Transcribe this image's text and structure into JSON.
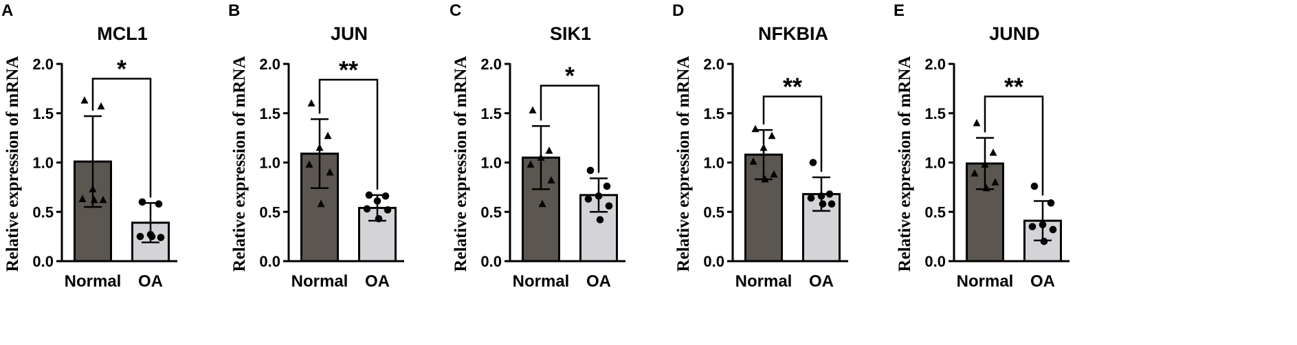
{
  "colors": {
    "normal_bar": "#5b5650",
    "oa_bar": "#d4d4d8",
    "ink": "#000000"
  },
  "chart_data": [
    {
      "panel": "A",
      "type": "bar",
      "title": "MCL1",
      "ylabel": "Relative  expression of mRNA",
      "ylim": [
        0,
        2.0
      ],
      "yticks": [
        "0.0",
        "0.5",
        "1.0",
        "1.5",
        "2.0"
      ],
      "categories": [
        "Normal",
        "OA"
      ],
      "values": [
        1.01,
        0.39
      ],
      "errors": [
        0.46,
        0.2
      ],
      "points": [
        [
          1.63,
          1.57,
          0.73,
          0.63,
          0.62,
          0.62
        ],
        [
          0.6,
          0.58,
          0.27,
          0.25,
          0.24,
          0.25
        ]
      ],
      "significance": "*",
      "bracket_y": 1.85
    },
    {
      "panel": "B",
      "type": "bar",
      "title": "JUN",
      "ylabel": "Relative  expression of mRNA",
      "ylim": [
        0,
        2.0
      ],
      "yticks": [
        "0.0",
        "0.5",
        "1.0",
        "1.5",
        "2.0"
      ],
      "categories": [
        "Normal",
        "OA"
      ],
      "values": [
        1.09,
        0.54
      ],
      "errors": [
        0.35,
        0.13
      ],
      "points": [
        [
          1.6,
          1.27,
          1.15,
          0.98,
          0.9,
          0.58
        ],
        [
          0.67,
          0.66,
          0.61,
          0.53,
          0.52,
          0.43
        ]
      ],
      "significance": "**",
      "bracket_y": 1.84
    },
    {
      "panel": "C",
      "type": "bar",
      "title": "SIK1",
      "ylabel": "Relative  expression of mRNA",
      "ylim": [
        0,
        2.0
      ],
      "yticks": [
        "0.0",
        "0.5",
        "1.0",
        "1.5",
        "2.0"
      ],
      "categories": [
        "Normal",
        "OA"
      ],
      "values": [
        1.05,
        0.67
      ],
      "errors": [
        0.32,
        0.17
      ],
      "points": [
        [
          1.53,
          1.12,
          1.05,
          0.98,
          0.82,
          0.58
        ],
        [
          0.92,
          0.76,
          0.66,
          0.63,
          0.56,
          0.42
        ]
      ],
      "significance": "*",
      "bracket_y": 1.78
    },
    {
      "panel": "D",
      "type": "bar",
      "title": "NFKBIA",
      "ylabel": "Relative  expression of mRNA",
      "ylim": [
        0,
        2.0
      ],
      "yticks": [
        "0.0",
        "0.5",
        "1.0",
        "1.5",
        "2.0"
      ],
      "categories": [
        "Normal",
        "OA"
      ],
      "values": [
        1.08,
        0.68
      ],
      "errors": [
        0.25,
        0.17
      ],
      "points": [
        [
          1.34,
          1.27,
          1.15,
          1.01,
          0.88,
          0.83
        ],
        [
          1.0,
          0.68,
          0.66,
          0.64,
          0.58,
          0.58
        ]
      ],
      "significance": "**",
      "bracket_y": 1.67
    },
    {
      "panel": "E",
      "type": "bar",
      "title": "JUND",
      "ylabel": "Relative  expression of mRNA",
      "ylim": [
        0,
        2.0
      ],
      "yticks": [
        "0.0",
        "0.5",
        "1.0",
        "1.5",
        "2.0"
      ],
      "categories": [
        "Normal",
        "OA"
      ],
      "values": [
        0.99,
        0.41
      ],
      "errors": [
        0.26,
        0.2
      ],
      "points": [
        [
          1.4,
          1.1,
          0.98,
          0.89,
          0.8,
          0.74
        ],
        [
          0.76,
          0.59,
          0.37,
          0.35,
          0.32,
          0.2
        ]
      ],
      "significance": "**",
      "bracket_y": 1.67
    }
  ]
}
